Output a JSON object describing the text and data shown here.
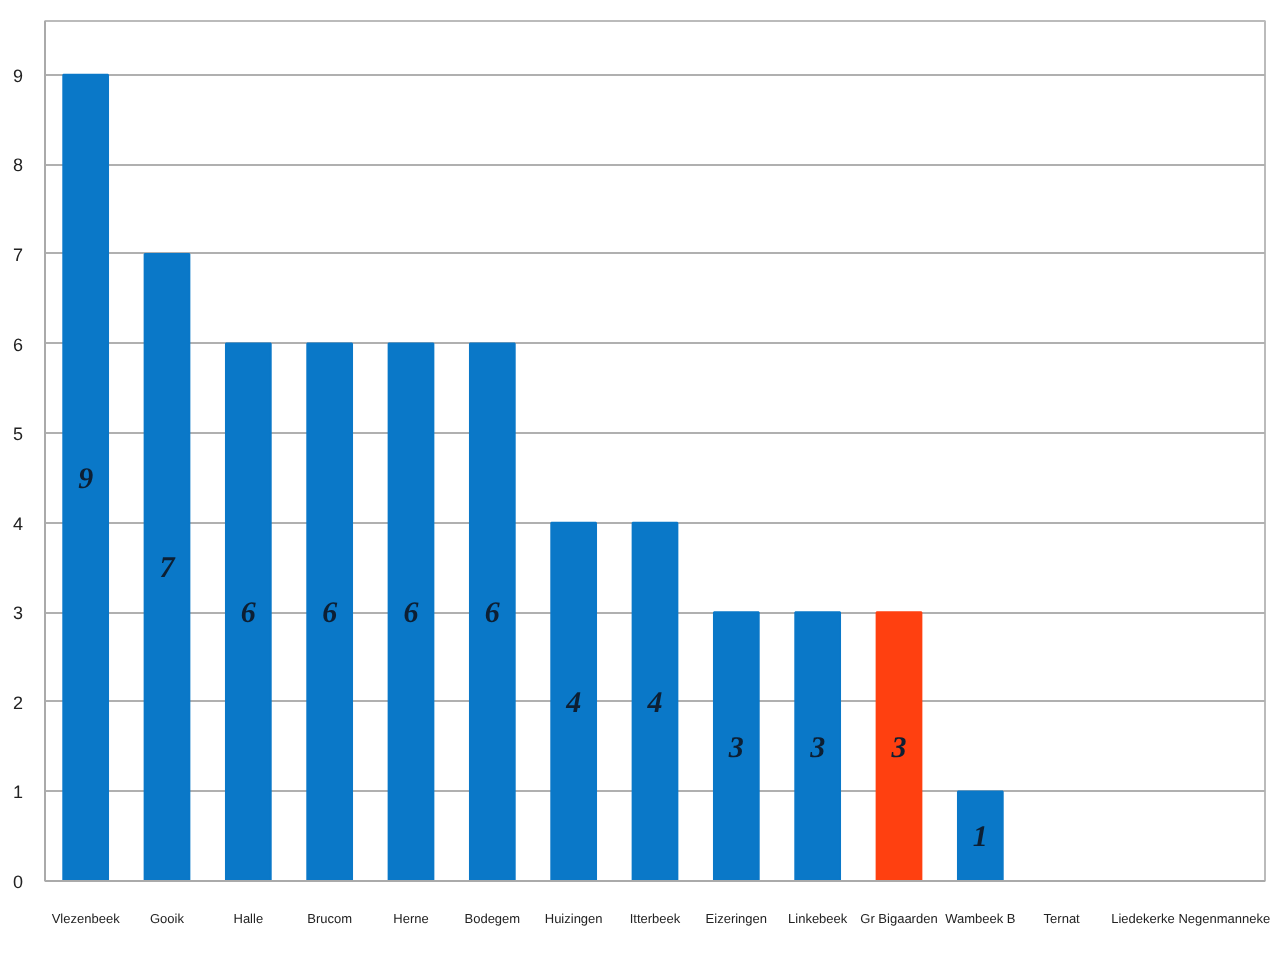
{
  "chart_data": {
    "type": "bar",
    "categories": [
      "Vlezenbeek",
      "Gooik",
      "Halle",
      "Brucom",
      "Herne",
      "Bodegem",
      "Huizingen",
      "Itterbeek",
      "Eizeringen",
      "Linkebeek",
      "Gr Bigaarden",
      "Wambeek B",
      "Ternat",
      "Liedekerke",
      "Negenmanneke"
    ],
    "values": [
      9,
      7,
      6,
      6,
      6,
      6,
      4,
      4,
      3,
      3,
      3,
      1,
      0,
      0,
      0
    ],
    "colors": [
      "#0a78c8",
      "#0a78c8",
      "#0a78c8",
      "#0a78c8",
      "#0a78c8",
      "#0a78c8",
      "#0a78c8",
      "#0a78c8",
      "#0a78c8",
      "#0a78c8",
      "#ff4010",
      "#0a78c8",
      "#0a78c8",
      "#0a78c8",
      "#0a78c8"
    ],
    "value_labels": [
      "9",
      "7",
      "6",
      "6",
      "6",
      "6",
      "4",
      "4",
      "3",
      "3",
      "3",
      "1",
      null,
      null,
      null
    ],
    "ylim": [
      0,
      9.6
    ],
    "yticks": [
      0,
      1,
      2,
      3,
      4,
      5,
      6,
      7,
      8,
      9
    ],
    "grid": "y"
  }
}
